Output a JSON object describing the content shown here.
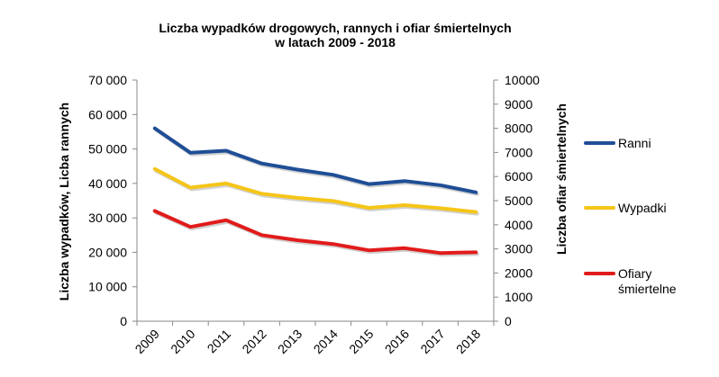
{
  "chart_data": {
    "type": "line",
    "title_line1": "Liczba wypadków drogowych, rannych i ofiar śmiertelnych",
    "title_line2": "w latach 2009 - 2018",
    "categories": [
      "2009",
      "2010",
      "2011",
      "2012",
      "2013",
      "2014",
      "2015",
      "2016",
      "2017",
      "2018"
    ],
    "y_left": {
      "label": "Liczba wypadków, Licba rannych",
      "min": 0,
      "max": 70000,
      "step": 10000,
      "tick_labels": [
        "0",
        "10 000",
        "20 000",
        "30 000",
        "40 000",
        "50 000",
        "60 000",
        "70 000"
      ]
    },
    "y_right": {
      "label": "Liczba ofiar śmiertelnych",
      "min": 0,
      "max": 10000,
      "step": 1000,
      "tick_labels": [
        "0",
        "1000",
        "2000",
        "3000",
        "4000",
        "5000",
        "6000",
        "7000",
        "8000",
        "9000",
        "10000"
      ]
    },
    "series": [
      {
        "name": "Ranni",
        "axis": "left",
        "color": "#1f4e96",
        "values": [
          56000,
          48900,
          49500,
          45800,
          44000,
          42500,
          39800,
          40700,
          39500,
          37400
        ]
      },
      {
        "name": "Wypadki",
        "axis": "left",
        "color": "#f5c518",
        "values": [
          44200,
          38800,
          40000,
          37000,
          35800,
          34900,
          32900,
          33700,
          32800,
          31700
        ]
      },
      {
        "name": "Ofiary śmiertelne",
        "axis": "right",
        "color": "#e11b1b",
        "values": [
          4570,
          3910,
          4190,
          3570,
          3360,
          3200,
          2940,
          3030,
          2830,
          2860
        ]
      }
    ],
    "legend": {
      "position": "right",
      "entries": [
        {
          "lines": [
            "Ranni"
          ]
        },
        {
          "lines": [
            "Wypadki"
          ]
        },
        {
          "lines": [
            "Ofiary",
            "śmiertelne"
          ]
        }
      ]
    },
    "grid": false
  }
}
